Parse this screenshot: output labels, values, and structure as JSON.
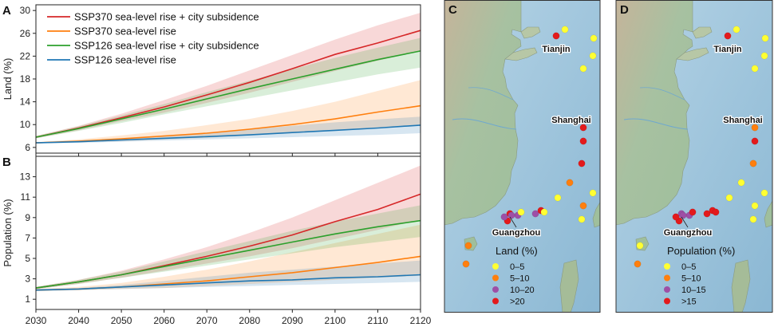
{
  "chart_data": [
    {
      "type": "line",
      "panel": "A",
      "ylabel": "Land (%)",
      "xlabel": "",
      "xlim": [
        2030,
        2120
      ],
      "ylim": [
        5,
        31
      ],
      "yticks": [
        6,
        10,
        14,
        18,
        22,
        26,
        30
      ],
      "x": [
        2030,
        2040,
        2050,
        2060,
        2070,
        2080,
        2090,
        2100,
        2110,
        2120
      ],
      "legend_position": "top-left",
      "series": [
        {
          "name": "SSP370 sea-level rise + city subsidence",
          "color": "#d62728",
          "values": [
            7.8,
            9.4,
            11.2,
            13.1,
            15.2,
            17.4,
            19.8,
            22.3,
            24.3,
            26.5
          ],
          "lower": [
            7.6,
            9.0,
            10.6,
            12.1,
            13.8,
            15.6,
            17.5,
            19.4,
            21.2,
            22.9
          ],
          "upper": [
            8.0,
            9.8,
            11.9,
            14.3,
            16.8,
            19.5,
            22.2,
            24.9,
            27.4,
            29.6
          ]
        },
        {
          "name": "SSP370 sea-level rise",
          "color": "#ff7f0e",
          "values": [
            6.8,
            7.1,
            7.5,
            8.0,
            8.5,
            9.2,
            10.0,
            11.0,
            12.2,
            13.3
          ],
          "lower": [
            6.7,
            6.9,
            7.1,
            7.4,
            7.7,
            8.1,
            8.5,
            9.0,
            9.5,
            10.0
          ],
          "upper": [
            6.9,
            7.4,
            8.1,
            8.9,
            9.9,
            11.0,
            12.4,
            14.0,
            15.9,
            17.8
          ]
        },
        {
          "name": "SSP126 sea-level rise + city subsidence",
          "color": "#2ca02c",
          "values": [
            7.8,
            9.3,
            11.0,
            12.7,
            14.5,
            16.3,
            18.0,
            19.7,
            21.4,
            22.9
          ],
          "lower": [
            7.6,
            8.9,
            10.3,
            11.8,
            13.2,
            14.6,
            16.0,
            17.4,
            18.8,
            20.0
          ],
          "upper": [
            8.0,
            9.7,
            11.6,
            13.6,
            15.7,
            17.7,
            19.7,
            21.7,
            23.5,
            25.2
          ]
        },
        {
          "name": "SSP126 sea-level rise",
          "color": "#1f77b4",
          "values": [
            6.8,
            7.0,
            7.3,
            7.6,
            7.9,
            8.2,
            8.6,
            9.0,
            9.4,
            9.9
          ],
          "lower": [
            6.7,
            6.8,
            7.0,
            7.2,
            7.4,
            7.6,
            7.8,
            8.0,
            8.2,
            8.5
          ],
          "upper": [
            6.9,
            7.2,
            7.6,
            8.1,
            8.6,
            9.2,
            9.8,
            10.4,
            10.9,
            11.4
          ]
        }
      ]
    },
    {
      "type": "line",
      "panel": "B",
      "ylabel": "Population (%)",
      "xlabel": "",
      "xlim": [
        2030,
        2120
      ],
      "ylim": [
        0,
        15
      ],
      "yticks": [
        1,
        3,
        5,
        7,
        9,
        11,
        13
      ],
      "xticks": [
        2030,
        2040,
        2050,
        2060,
        2070,
        2080,
        2090,
        2100,
        2110,
        2120
      ],
      "x": [
        2030,
        2040,
        2050,
        2060,
        2070,
        2080,
        2090,
        2100,
        2110,
        2120
      ],
      "series": [
        {
          "name": "SSP370 sea-level rise + city subsidence",
          "color": "#d62728",
          "values": [
            2.1,
            2.7,
            3.4,
            4.3,
            5.2,
            6.2,
            7.3,
            8.6,
            9.8,
            11.3
          ],
          "lower": [
            2.0,
            2.5,
            3.1,
            3.8,
            4.5,
            5.2,
            6.0,
            6.9,
            7.8,
            8.8
          ],
          "upper": [
            2.2,
            2.9,
            3.8,
            4.9,
            6.1,
            7.5,
            9.0,
            10.7,
            12.4,
            14.1
          ]
        },
        {
          "name": "SSP370 sea-level rise",
          "color": "#ff7f0e",
          "values": [
            1.9,
            2.0,
            2.2,
            2.5,
            2.8,
            3.2,
            3.6,
            4.1,
            4.6,
            5.2
          ],
          "lower": [
            1.8,
            1.9,
            2.0,
            2.1,
            2.3,
            2.5,
            2.7,
            2.9,
            3.1,
            3.3
          ],
          "upper": [
            2.0,
            2.2,
            2.6,
            3.2,
            3.9,
            4.7,
            5.6,
            6.5,
            7.4,
            8.3
          ]
        },
        {
          "name": "SSP126 sea-level rise + city subsidence",
          "color": "#2ca02c",
          "values": [
            2.1,
            2.7,
            3.4,
            4.2,
            5.0,
            5.8,
            6.6,
            7.4,
            8.1,
            8.7
          ],
          "lower": [
            2.0,
            2.5,
            3.1,
            3.7,
            4.3,
            4.9,
            5.5,
            6.1,
            6.6,
            7.1
          ],
          "upper": [
            2.2,
            2.9,
            3.7,
            4.7,
            5.7,
            6.7,
            7.7,
            8.6,
            9.4,
            10.2
          ]
        },
        {
          "name": "SSP126 sea-level rise",
          "color": "#1f77b4",
          "values": [
            1.9,
            2.0,
            2.2,
            2.4,
            2.6,
            2.8,
            2.9,
            3.1,
            3.2,
            3.4
          ],
          "lower": [
            1.8,
            1.9,
            2.0,
            2.1,
            2.2,
            2.3,
            2.4,
            2.5,
            2.6,
            2.7
          ],
          "upper": [
            2.0,
            2.1,
            2.4,
            2.8,
            3.2,
            3.6,
            3.9,
            4.2,
            4.5,
            4.8
          ]
        }
      ]
    }
  ],
  "maps": [
    {
      "panel": "C",
      "legend_title": "Land (%)",
      "legend": [
        {
          "label": "0–5",
          "color": "#ffff33"
        },
        {
          "label": "5–10",
          "color": "#ff7f0e"
        },
        {
          "label": "10–20",
          "color": "#9e4fa6"
        },
        {
          "label": ">20",
          "color": "#e31a1c"
        }
      ],
      "cities": [
        "Tianjin",
        "Shanghai",
        "Guangzhou"
      ]
    },
    {
      "panel": "D",
      "legend_title": "Population (%)",
      "legend": [
        {
          "label": "0–5",
          "color": "#ffff33"
        },
        {
          "label": "5–10",
          "color": "#ff7f0e"
        },
        {
          "label": "10–15",
          "color": "#9e4fa6"
        },
        {
          "label": ">15",
          "color": "#e31a1c"
        }
      ],
      "cities": [
        "Tianjin",
        "Shanghai",
        "Guangzhou"
      ]
    }
  ]
}
